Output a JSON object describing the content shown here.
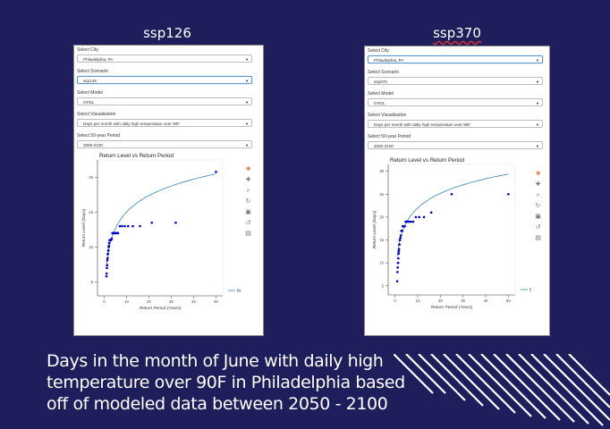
{
  "panels": [
    {
      "id": "left",
      "heading": "ssp126",
      "controls": [
        {
          "label": "Select City",
          "value": "Philadelphia, PA",
          "active": false
        },
        {
          "label": "Select Scenario",
          "value": "ssp126",
          "active": true
        },
        {
          "label": "Select Model",
          "value": "GFDL",
          "active": false
        },
        {
          "label": "Select Visualization",
          "value": "Days per month with daily high temperature over 90F",
          "active": false
        },
        {
          "label": "Select 50-year Period",
          "value": "2050-2100",
          "active": false
        }
      ]
    },
    {
      "id": "right",
      "heading": "ssp370",
      "controls": [
        {
          "label": "Select City",
          "value": "Philadelphia, PA",
          "active": true
        },
        {
          "label": "Select Scenario",
          "value": "ssp370",
          "active": false
        },
        {
          "label": "Select Model",
          "value": "GFDL",
          "active": false
        },
        {
          "label": "Select Visualization",
          "value": "Days per month with daily high temperature over 90F",
          "active": false
        },
        {
          "label": "Select 50-year Period",
          "value": "2050-2100",
          "active": false
        }
      ]
    }
  ],
  "toolbar_icons": [
    "bokeh-logo-icon",
    "pan-icon",
    "box-zoom-icon",
    "wheel-zoom-icon",
    "save-icon",
    "reset-icon",
    "hover-icon"
  ],
  "caption": "Days in the month of June with daily high temperature over 90F in Philadelphia based off of modeled data between 2050 - 2100",
  "colors": {
    "background": "#1d1e5b",
    "points": "#0000cc",
    "fit_line": "#1f77b4"
  },
  "chart_data": [
    {
      "type": "scatter",
      "title": "Return Level vs Return Period",
      "xlabel": "Return Period (Years)",
      "ylabel": "Return Level (Days)",
      "xlim": [
        -3,
        53
      ],
      "ylim": [
        3,
        22.5
      ],
      "xticks": [
        0,
        10,
        20,
        30,
        40,
        50
      ],
      "yticks": [
        5,
        10,
        15,
        20
      ],
      "legend": "Best Fit Line",
      "legend_position": "bottom-right",
      "series": [
        {
          "type": "scatter",
          "x": [
            1.0,
            1.1,
            1.2,
            1.3,
            1.4,
            1.5,
            1.6,
            1.7,
            1.8,
            1.9,
            2.0,
            2.1,
            2.2,
            2.4,
            2.6,
            2.8,
            3.0,
            3.2,
            3.4,
            3.7,
            4.0,
            4.3,
            4.7,
            5.1,
            5.6,
            6.2,
            7.0,
            8.0,
            9.2,
            10.7,
            12.8,
            16.0,
            21.3,
            32.0,
            50.0
          ],
          "y": [
            5.8,
            6.2,
            7.0,
            7.4,
            8.1,
            8.4,
            9.0,
            9.0,
            9.5,
            9.5,
            10.0,
            10.2,
            10.6,
            11.0,
            11.0,
            11.0,
            11.0,
            11.1,
            11.2,
            12.0,
            12.0,
            12.0,
            12.0,
            12.0,
            12.0,
            12.0,
            13.0,
            13.0,
            13.0,
            13.0,
            13.0,
            13.0,
            13.5,
            13.5,
            20.8
          ]
        },
        {
          "type": "line",
          "fn": "fit",
          "params": [
            7.2,
            3.4
          ]
        }
      ]
    },
    {
      "type": "scatter",
      "title": "Return Level vs Return Period",
      "xlabel": "Return Period (Years)",
      "ylabel": "Return Level (Days)",
      "xlim": [
        -3,
        53
      ],
      "ylim": [
        3,
        31.5
      ],
      "xticks": [
        0,
        10,
        20,
        30,
        40,
        50
      ],
      "yticks": [
        5,
        10,
        15,
        20,
        25,
        30
      ],
      "legend": "Best Fit Line",
      "legend_position": "bottom-right",
      "series": [
        {
          "type": "scatter",
          "x": [
            1.0,
            1.1,
            1.2,
            1.3,
            1.4,
            1.5,
            1.6,
            1.7,
            1.8,
            1.9,
            2.0,
            2.1,
            2.2,
            2.4,
            2.6,
            2.8,
            3.0,
            3.2,
            3.4,
            3.7,
            4.0,
            4.3,
            4.7,
            5.1,
            5.6,
            6.2,
            7.0,
            8.0,
            9.2,
            10.7,
            12.8,
            16.0,
            25.0,
            50.0
          ],
          "y": [
            6.0,
            8.0,
            9.0,
            10.0,
            10.0,
            11.0,
            12.0,
            12.5,
            13.0,
            14.0,
            14.0,
            15.0,
            15.0,
            15.5,
            16.0,
            17.0,
            17.0,
            17.0,
            18.0,
            18.0,
            18.0,
            18.0,
            19.0,
            19.0,
            19.0,
            19.0,
            19.0,
            19.0,
            20.0,
            20.0,
            20.0,
            21.0,
            25.0,
            25.0
          ]
        },
        {
          "type": "line",
          "fn": "fit",
          "params": [
            11.4,
            4.6
          ]
        }
      ]
    }
  ]
}
